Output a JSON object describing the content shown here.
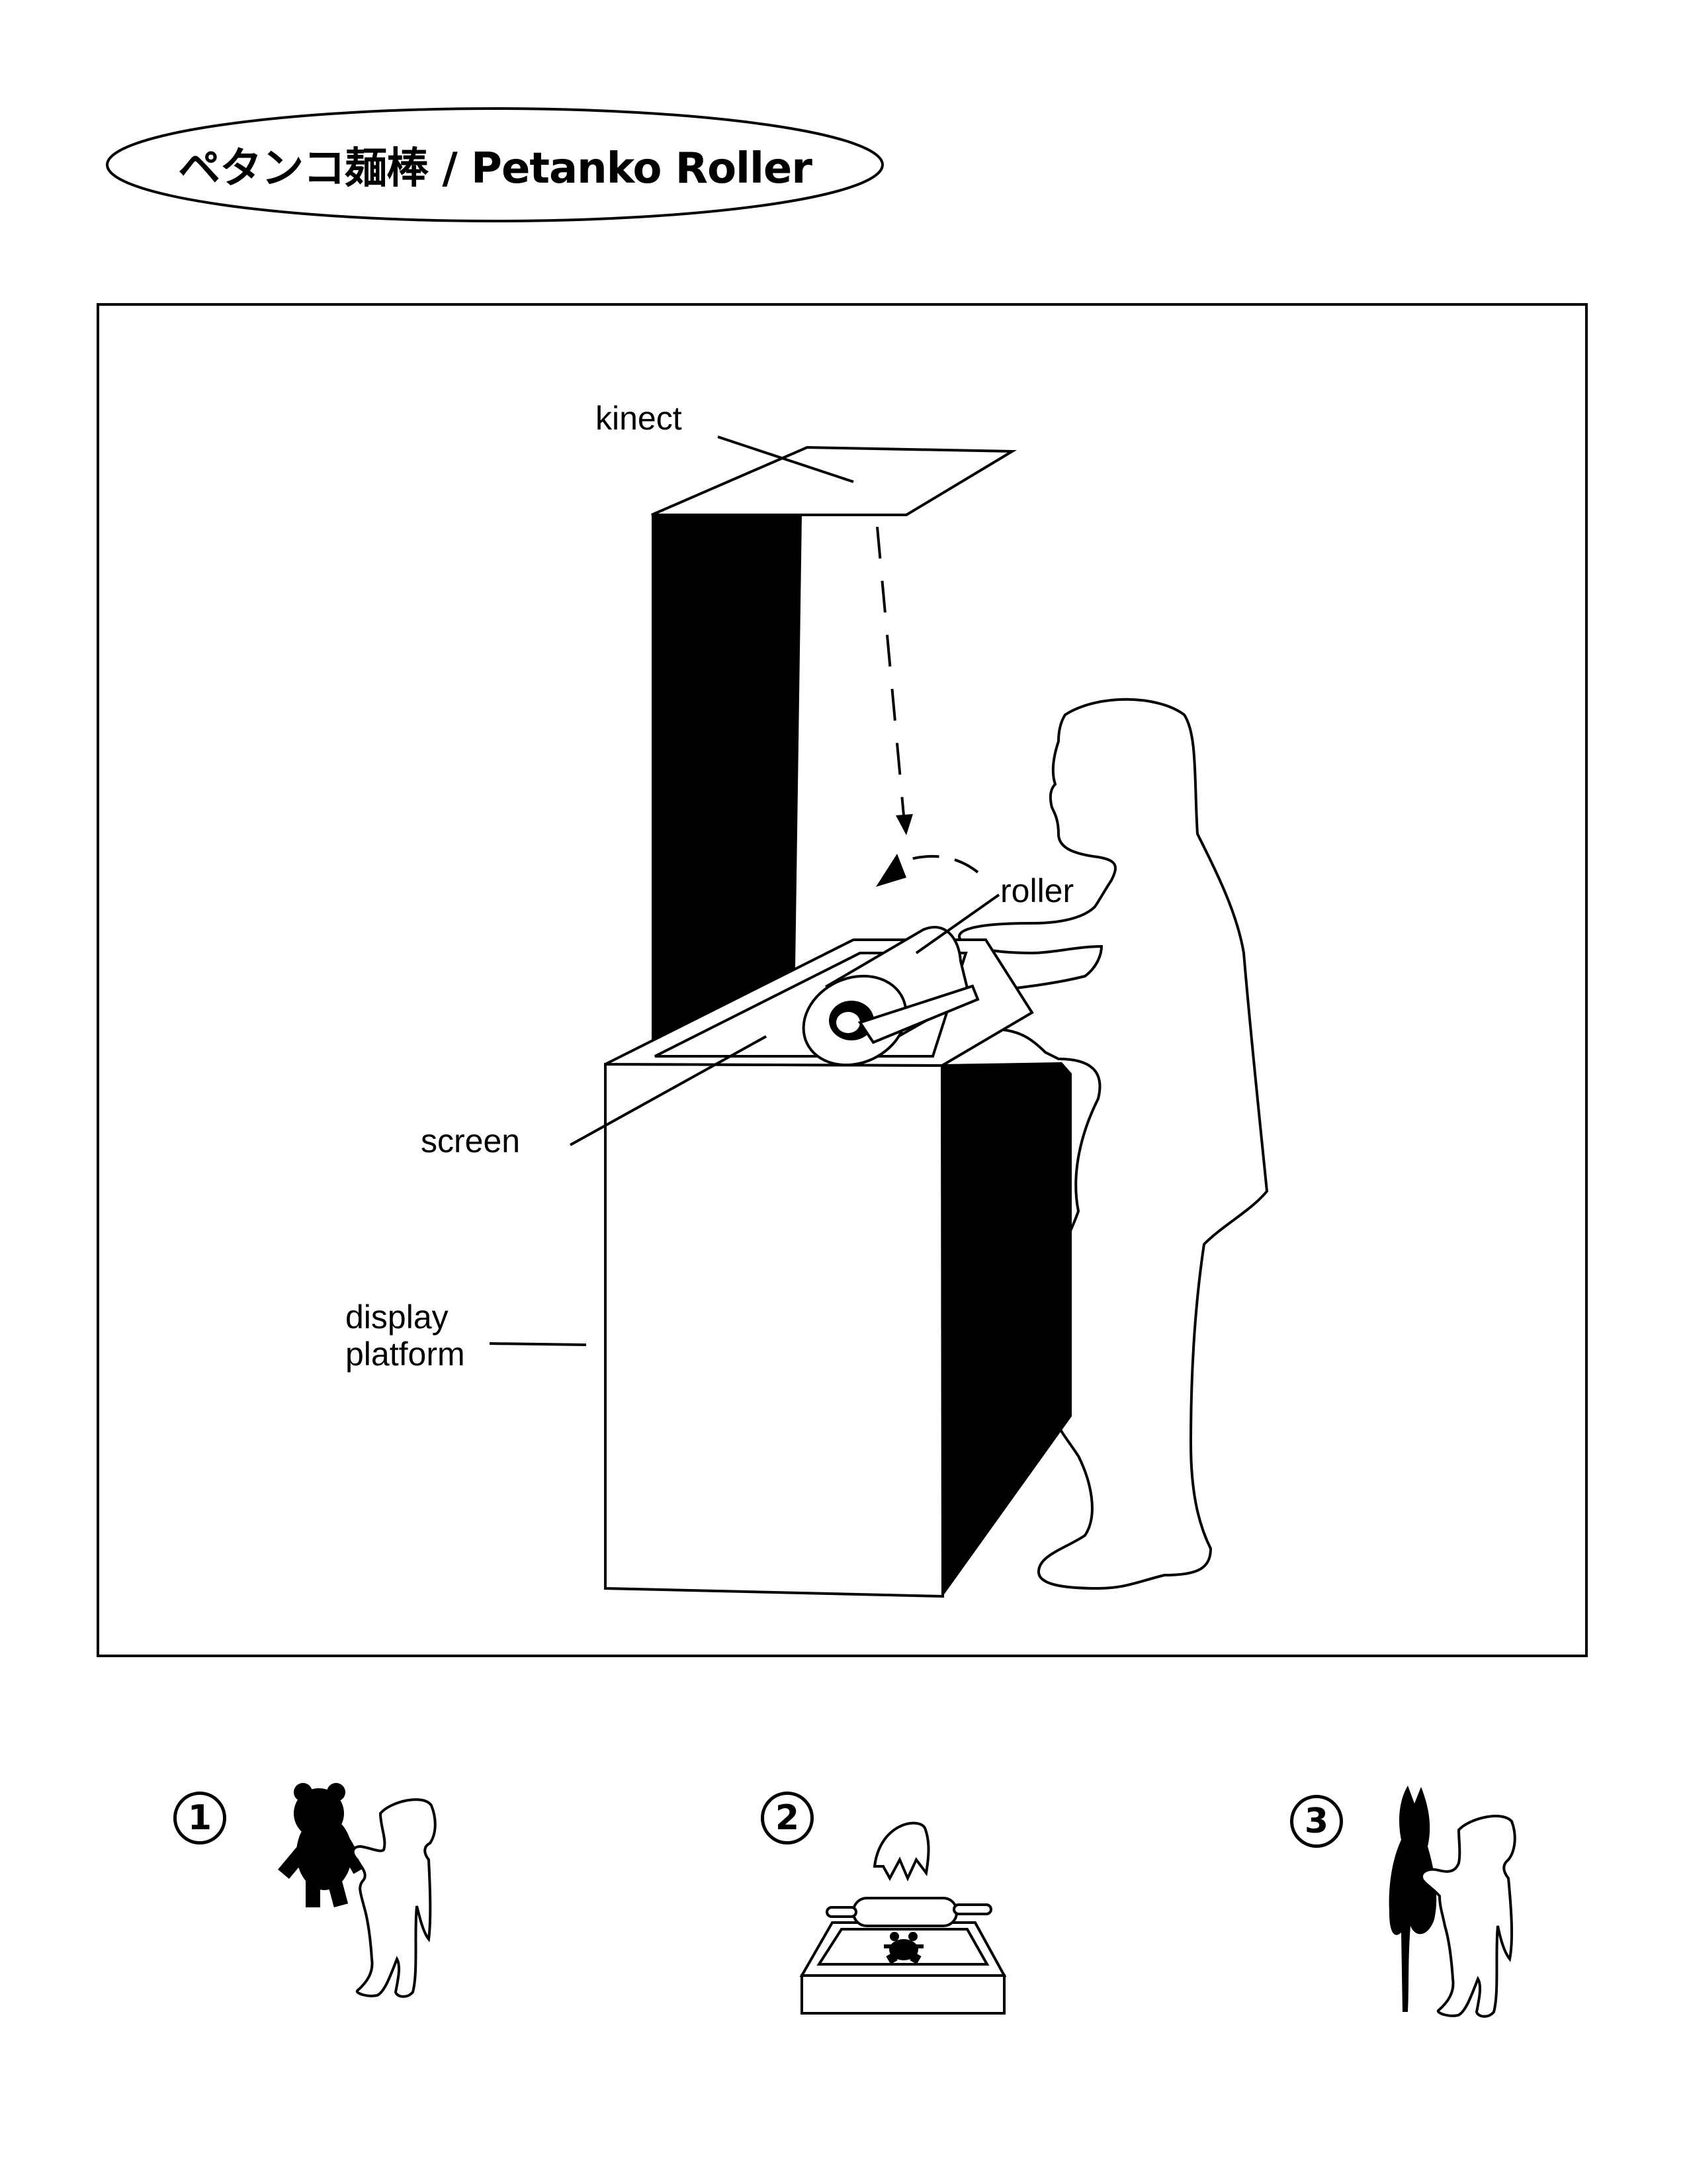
{
  "title": "ペタンコ麺棒 / Petanko Roller",
  "labels": {
    "kinect": "kinect",
    "roller": "roller",
    "screen": "screen",
    "display_platform_line1": "display",
    "display_platform_line2": "platform"
  },
  "steps": [
    {
      "number": "1"
    },
    {
      "number": "2"
    },
    {
      "number": "3"
    }
  ]
}
